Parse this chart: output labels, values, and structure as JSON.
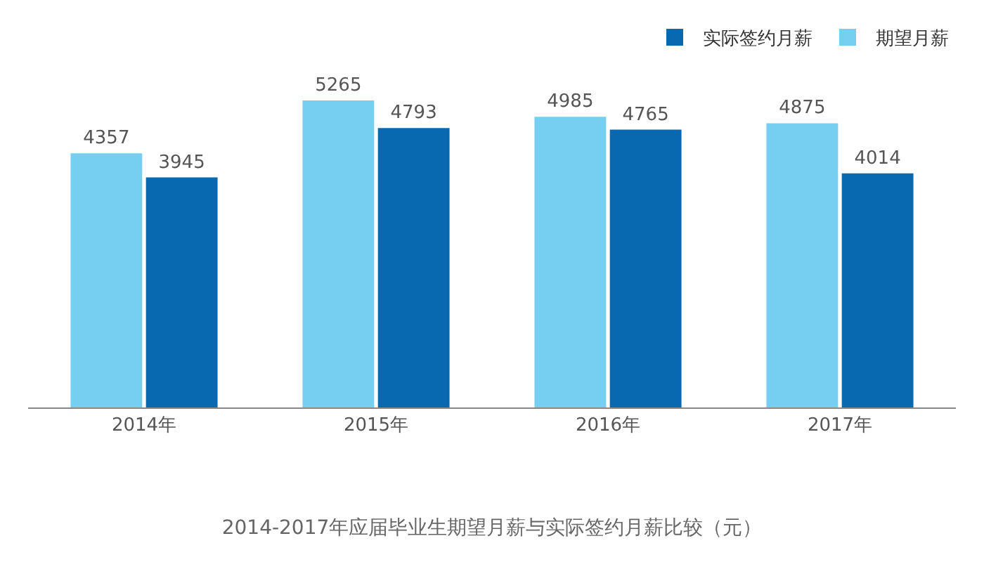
{
  "chart_data": {
    "type": "bar",
    "title": "2014-2017年应届毕业生期望月薪与实际签约月薪比较（元）",
    "categories": [
      "2014年",
      "2015年",
      "2016年",
      "2017年"
    ],
    "series": [
      {
        "name": "期望月薪",
        "color": "#76cff0",
        "values": [
          4357,
          5265,
          4985,
          4875
        ]
      },
      {
        "name": "实际签约月薪",
        "color": "#0868b0",
        "values": [
          3945,
          4793,
          4765,
          4014
        ]
      }
    ],
    "data_labels": true,
    "grid": false,
    "legend": "top right"
  }
}
